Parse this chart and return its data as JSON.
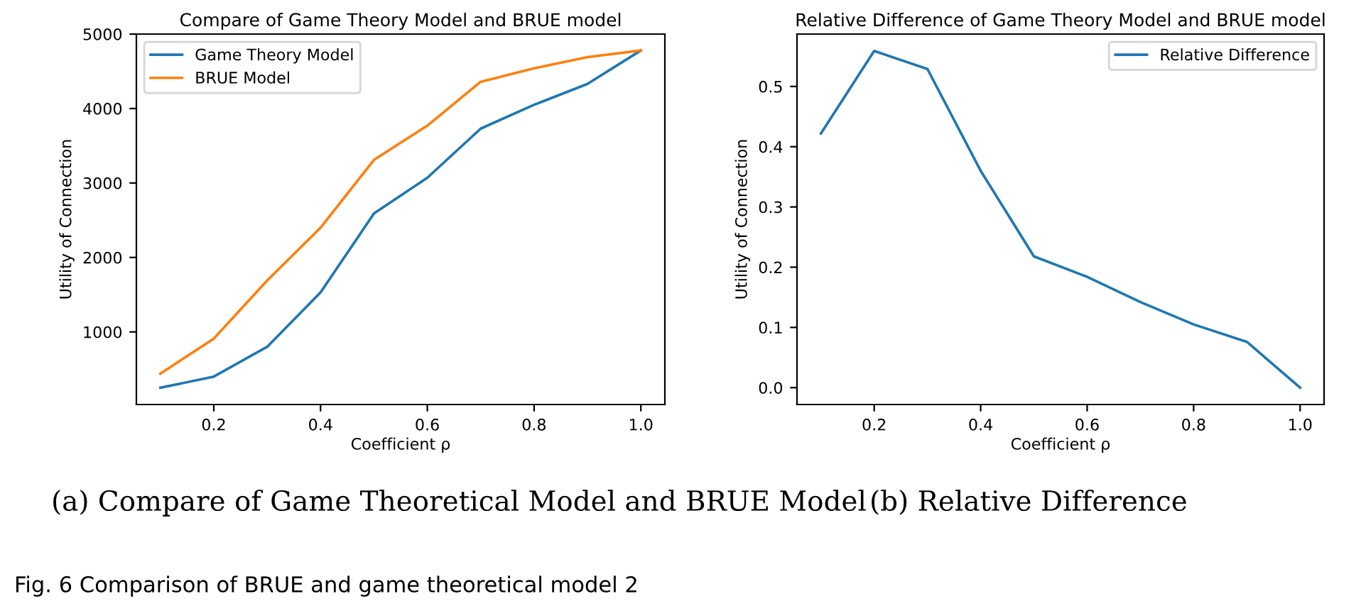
{
  "chart_data": [
    {
      "type": "line",
      "title": "Compare of Game Theory Model and BRUE model",
      "xlabel": "Coefficient ρ",
      "ylabel": "Utility of Connection",
      "x": [
        0.1,
        0.2,
        0.3,
        0.4,
        0.5,
        0.6,
        0.7,
        0.8,
        0.9,
        1.0
      ],
      "series": [
        {
          "name": "Game Theory Model",
          "color": "#1f77b4",
          "values": [
            250,
            400,
            800,
            1530,
            2590,
            3070,
            3730,
            4050,
            4330,
            4780
          ]
        },
        {
          "name": "BRUE Model",
          "color": "#ff7f0e",
          "values": [
            440,
            910,
            1690,
            2400,
            3310,
            3770,
            4360,
            4540,
            4690,
            4780
          ]
        }
      ],
      "xlim": [
        0.055,
        1.045
      ],
      "xticks": [
        0.2,
        0.4,
        0.6,
        0.8,
        {
          "value": 1,
          "label": "1.0"
        }
      ],
      "ylim": [
        25,
        5000
      ],
      "yticks": [
        1000,
        2000,
        3000,
        4000,
        5000
      ],
      "legend": "top left",
      "grid": false,
      "annotations": [
        "(a) Compare of Game Theoretical Model and BRUE Model",
        "Fig. 6 Comparison of BRUE and game theoretical model 2"
      ]
    },
    {
      "type": "line",
      "title": "Relative Difference of Game Theory Model and BRUE model",
      "xlabel": "Coefficient ρ",
      "ylabel": "Utility of Connection",
      "x": [
        0.1,
        0.2,
        0.3,
        0.4,
        0.5,
        0.6,
        0.7,
        0.8,
        0.9,
        1.0
      ],
      "series": [
        {
          "name": "Relative Difference",
          "color": "#1f77b4",
          "values": [
            0.422,
            0.559,
            0.529,
            0.36,
            0.218,
            0.184,
            0.142,
            0.105,
            0.076,
            0.0
          ]
        }
      ],
      "xlim": [
        0.055,
        1.045
      ],
      "xticks": [
        0.2,
        0.4,
        0.6,
        0.8,
        {
          "value": 1,
          "label": "1.0"
        }
      ],
      "ylim": [
        -0.028,
        0.587
      ],
      "yticks": [
        {
          "value": 0,
          "label": "0.0"
        },
        0.1,
        0.2,
        0.3,
        0.4,
        0.5
      ],
      "legend": "top right",
      "grid": false,
      "annotations": [
        "(b) Relative Difference"
      ]
    }
  ]
}
